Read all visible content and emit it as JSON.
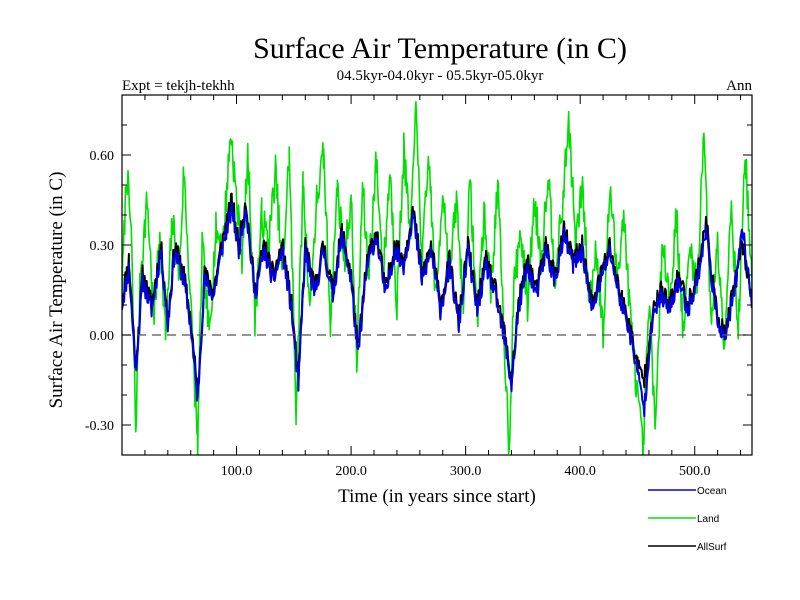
{
  "chart_data": {
    "type": "line",
    "title": "Surface Air Temperature (in C)",
    "subtitle": "04.5kyr-04.0kyr - 05.5kyr-05.0kyr",
    "left_label": "Expt = tekjh-tekhh",
    "right_label": "Ann",
    "xlabel": "Time (in years since start)",
    "ylabel": "Surface Air Temperature (in C)",
    "xlim": [
      0,
      550
    ],
    "ylim": [
      -0.4,
      0.8
    ],
    "x_ticks": [
      100,
      200,
      300,
      400,
      500
    ],
    "x_tick_labels": [
      "100.0",
      "200.0",
      "300.0",
      "400.0",
      "500.0"
    ],
    "y_ticks": [
      -0.3,
      0.0,
      0.3,
      0.6
    ],
    "y_tick_labels": [
      "-0.30",
      "0.00",
      "0.30",
      "0.60"
    ],
    "zero_line": 0.0,
    "series": [
      {
        "name": "Land",
        "color": "#00e000",
        "keypoints": [
          [
            0,
            0.15
          ],
          [
            4,
            0.55
          ],
          [
            8,
            0.35
          ],
          [
            12,
            -0.32
          ],
          [
            16,
            0.2
          ],
          [
            22,
            0.45
          ],
          [
            28,
            0.05
          ],
          [
            33,
            0.35
          ],
          [
            38,
            0.0
          ],
          [
            44,
            0.38
          ],
          [
            50,
            0.2
          ],
          [
            54,
            0.55
          ],
          [
            60,
            0.1
          ],
          [
            66,
            -0.38
          ],
          [
            70,
            0.3
          ],
          [
            76,
            0.0
          ],
          [
            82,
            0.35
          ],
          [
            88,
            0.3
          ],
          [
            95,
            0.68
          ],
          [
            100,
            0.45
          ],
          [
            105,
            0.25
          ],
          [
            110,
            0.6
          ],
          [
            116,
            0.05
          ],
          [
            122,
            0.4
          ],
          [
            128,
            0.3
          ],
          [
            134,
            0.55
          ],
          [
            140,
            0.2
          ],
          [
            146,
            0.6
          ],
          [
            152,
            -0.25
          ],
          [
            158,
            0.5
          ],
          [
            164,
            0.1
          ],
          [
            170,
            0.45
          ],
          [
            176,
            0.6
          ],
          [
            182,
            0.05
          ],
          [
            188,
            0.5
          ],
          [
            194,
            0.25
          ],
          [
            200,
            0.45
          ],
          [
            205,
            -0.1
          ],
          [
            210,
            0.5
          ],
          [
            215,
            0.2
          ],
          [
            222,
            0.58
          ],
          [
            228,
            0.2
          ],
          [
            234,
            0.55
          ],
          [
            240,
            0.1
          ],
          [
            246,
            0.62
          ],
          [
            252,
            0.3
          ],
          [
            256,
            0.78
          ],
          [
            262,
            0.25
          ],
          [
            268,
            0.6
          ],
          [
            274,
            0.1
          ],
          [
            280,
            0.5
          ],
          [
            286,
            0.2
          ],
          [
            292,
            0.45
          ],
          [
            298,
            0.1
          ],
          [
            304,
            0.5
          ],
          [
            310,
            0.05
          ],
          [
            316,
            0.4
          ],
          [
            322,
            0.15
          ],
          [
            328,
            0.5
          ],
          [
            334,
            -0.05
          ],
          [
            338,
            -0.37
          ],
          [
            342,
            0.15
          ],
          [
            348,
            0.35
          ],
          [
            354,
            0.1
          ],
          [
            360,
            0.45
          ],
          [
            366,
            0.25
          ],
          [
            372,
            0.55
          ],
          [
            378,
            0.2
          ],
          [
            384,
            0.4
          ],
          [
            390,
            0.72
          ],
          [
            396,
            0.3
          ],
          [
            402,
            0.5
          ],
          [
            408,
            0.1
          ],
          [
            414,
            0.3
          ],
          [
            420,
            0.0
          ],
          [
            426,
            0.5
          ],
          [
            432,
            0.2
          ],
          [
            438,
            0.4
          ],
          [
            444,
            0.05
          ],
          [
            450,
            -0.2
          ],
          [
            455,
            -0.4
          ],
          [
            460,
            0.1
          ],
          [
            466,
            -0.3
          ],
          [
            472,
            0.35
          ],
          [
            478,
            0.1
          ],
          [
            484,
            0.4
          ],
          [
            490,
            0.0
          ],
          [
            496,
            0.3
          ],
          [
            502,
            0.15
          ],
          [
            508,
            0.7
          ],
          [
            514,
            0.05
          ],
          [
            520,
            0.3
          ],
          [
            526,
            -0.02
          ],
          [
            532,
            0.45
          ],
          [
            538,
            0.0
          ],
          [
            544,
            0.62
          ],
          [
            550,
            0.15
          ]
        ]
      },
      {
        "name": "AllSurf",
        "color": "#000000",
        "keypoints": [
          [
            0,
            0.12
          ],
          [
            6,
            0.25
          ],
          [
            12,
            -0.1
          ],
          [
            18,
            0.2
          ],
          [
            26,
            0.1
          ],
          [
            34,
            0.3
          ],
          [
            40,
            0.05
          ],
          [
            46,
            0.3
          ],
          [
            54,
            0.2
          ],
          [
            60,
            0.05
          ],
          [
            66,
            -0.2
          ],
          [
            72,
            0.2
          ],
          [
            80,
            0.15
          ],
          [
            88,
            0.32
          ],
          [
            96,
            0.45
          ],
          [
            102,
            0.3
          ],
          [
            108,
            0.45
          ],
          [
            116,
            0.15
          ],
          [
            124,
            0.3
          ],
          [
            132,
            0.2
          ],
          [
            140,
            0.3
          ],
          [
            148,
            0.1
          ],
          [
            154,
            -0.15
          ],
          [
            160,
            0.3
          ],
          [
            168,
            0.15
          ],
          [
            176,
            0.3
          ],
          [
            184,
            0.15
          ],
          [
            192,
            0.35
          ],
          [
            200,
            0.2
          ],
          [
            206,
            -0.05
          ],
          [
            214,
            0.25
          ],
          [
            222,
            0.35
          ],
          [
            230,
            0.15
          ],
          [
            238,
            0.3
          ],
          [
            246,
            0.25
          ],
          [
            254,
            0.42
          ],
          [
            262,
            0.2
          ],
          [
            270,
            0.3
          ],
          [
            278,
            0.1
          ],
          [
            286,
            0.25
          ],
          [
            294,
            0.05
          ],
          [
            302,
            0.3
          ],
          [
            310,
            0.1
          ],
          [
            318,
            0.25
          ],
          [
            326,
            0.15
          ],
          [
            334,
            0.0
          ],
          [
            340,
            -0.15
          ],
          [
            346,
            0.1
          ],
          [
            354,
            0.25
          ],
          [
            362,
            0.15
          ],
          [
            370,
            0.3
          ],
          [
            378,
            0.2
          ],
          [
            386,
            0.35
          ],
          [
            394,
            0.25
          ],
          [
            402,
            0.3
          ],
          [
            410,
            0.1
          ],
          [
            418,
            0.2
          ],
          [
            426,
            0.3
          ],
          [
            434,
            0.15
          ],
          [
            442,
            0.05
          ],
          [
            450,
            -0.1
          ],
          [
            456,
            -0.15
          ],
          [
            462,
            0.05
          ],
          [
            470,
            0.15
          ],
          [
            478,
            0.1
          ],
          [
            486,
            0.2
          ],
          [
            494,
            0.1
          ],
          [
            502,
            0.2
          ],
          [
            510,
            0.38
          ],
          [
            518,
            0.1
          ],
          [
            526,
            0.0
          ],
          [
            534,
            0.15
          ],
          [
            542,
            0.3
          ],
          [
            550,
            0.12
          ]
        ]
      },
      {
        "name": "Ocean",
        "color": "#0000e0",
        "keypoints": [
          [
            0,
            0.1
          ],
          [
            6,
            0.22
          ],
          [
            12,
            -0.12
          ],
          [
            18,
            0.18
          ],
          [
            26,
            0.08
          ],
          [
            34,
            0.28
          ],
          [
            40,
            0.03
          ],
          [
            46,
            0.28
          ],
          [
            54,
            0.18
          ],
          [
            60,
            0.03
          ],
          [
            66,
            -0.22
          ],
          [
            72,
            0.18
          ],
          [
            80,
            0.13
          ],
          [
            88,
            0.3
          ],
          [
            96,
            0.42
          ],
          [
            102,
            0.28
          ],
          [
            108,
            0.43
          ],
          [
            116,
            0.13
          ],
          [
            124,
            0.28
          ],
          [
            132,
            0.18
          ],
          [
            140,
            0.28
          ],
          [
            148,
            0.08
          ],
          [
            154,
            -0.17
          ],
          [
            160,
            0.28
          ],
          [
            168,
            0.13
          ],
          [
            176,
            0.28
          ],
          [
            184,
            0.13
          ],
          [
            192,
            0.33
          ],
          [
            200,
            0.18
          ],
          [
            206,
            -0.07
          ],
          [
            214,
            0.23
          ],
          [
            222,
            0.33
          ],
          [
            230,
            0.13
          ],
          [
            238,
            0.28
          ],
          [
            246,
            0.23
          ],
          [
            254,
            0.4
          ],
          [
            262,
            0.18
          ],
          [
            270,
            0.28
          ],
          [
            278,
            0.08
          ],
          [
            286,
            0.23
          ],
          [
            294,
            0.03
          ],
          [
            302,
            0.28
          ],
          [
            310,
            0.08
          ],
          [
            318,
            0.23
          ],
          [
            326,
            0.13
          ],
          [
            334,
            -0.02
          ],
          [
            340,
            -0.17
          ],
          [
            346,
            0.08
          ],
          [
            354,
            0.23
          ],
          [
            362,
            0.13
          ],
          [
            370,
            0.28
          ],
          [
            378,
            0.18
          ],
          [
            386,
            0.33
          ],
          [
            394,
            0.23
          ],
          [
            402,
            0.28
          ],
          [
            410,
            0.08
          ],
          [
            418,
            0.18
          ],
          [
            426,
            0.28
          ],
          [
            434,
            0.13
          ],
          [
            442,
            0.03
          ],
          [
            450,
            -0.12
          ],
          [
            456,
            -0.25
          ],
          [
            462,
            0.03
          ],
          [
            470,
            0.13
          ],
          [
            478,
            0.08
          ],
          [
            486,
            0.18
          ],
          [
            494,
            0.08
          ],
          [
            502,
            0.18
          ],
          [
            510,
            0.35
          ],
          [
            518,
            0.08
          ],
          [
            526,
            -0.02
          ],
          [
            534,
            0.13
          ],
          [
            542,
            0.35
          ],
          [
            550,
            0.1
          ]
        ]
      }
    ],
    "legend": [
      {
        "name": "Ocean",
        "color": "#0000e0"
      },
      {
        "name": "Land",
        "color": "#00e000"
      },
      {
        "name": "AllSurf",
        "color": "#000000"
      }
    ]
  }
}
